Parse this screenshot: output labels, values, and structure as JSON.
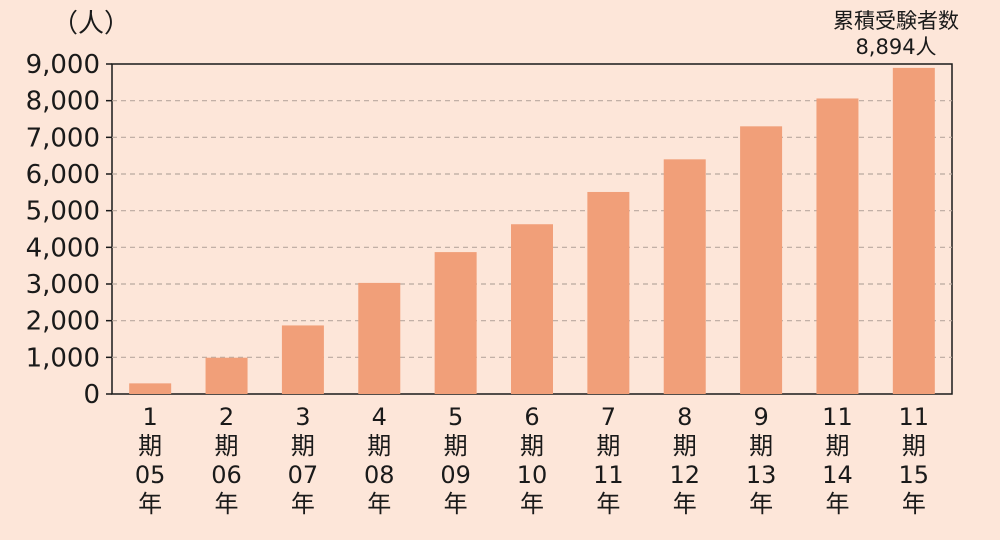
{
  "chart_data": {
    "type": "bar",
    "ylabel": "（人）",
    "ylim": [
      0,
      9000
    ],
    "yticks": [
      0,
      1000,
      2000,
      3000,
      4000,
      5000,
      6000,
      7000,
      8000,
      9000
    ],
    "ytick_labels": [
      "0",
      "1,000",
      "2,000",
      "3,000",
      "4,000",
      "5,000",
      "6,000",
      "7,000",
      "8,000",
      "9,000"
    ],
    "grid": true,
    "categories": [
      [
        "1",
        "期",
        "05",
        "年"
      ],
      [
        "2",
        "期",
        "06",
        "年"
      ],
      [
        "3",
        "期",
        "07",
        "年"
      ],
      [
        "4",
        "期",
        "08",
        "年"
      ],
      [
        "5",
        "期",
        "09",
        "年"
      ],
      [
        "6",
        "期",
        "10",
        "年"
      ],
      [
        "7",
        "期",
        "11",
        "年"
      ],
      [
        "8",
        "期",
        "12",
        "年"
      ],
      [
        "9",
        "期",
        "13",
        "年"
      ],
      [
        "11",
        "期",
        "14",
        "年"
      ],
      [
        "11",
        "期",
        "15",
        "年"
      ]
    ],
    "values": [
      290,
      990,
      1870,
      3030,
      3870,
      4630,
      5510,
      6400,
      7300,
      8060,
      8894
    ],
    "annotation": {
      "line1": "累積受験者数",
      "line2": "8,894人"
    },
    "colors": {
      "bar": "#f19f79",
      "background": "#fde6d9",
      "plot_background": "#fde6d9",
      "axis": "#1a1a1a",
      "grid": "#b9a9a0"
    }
  }
}
